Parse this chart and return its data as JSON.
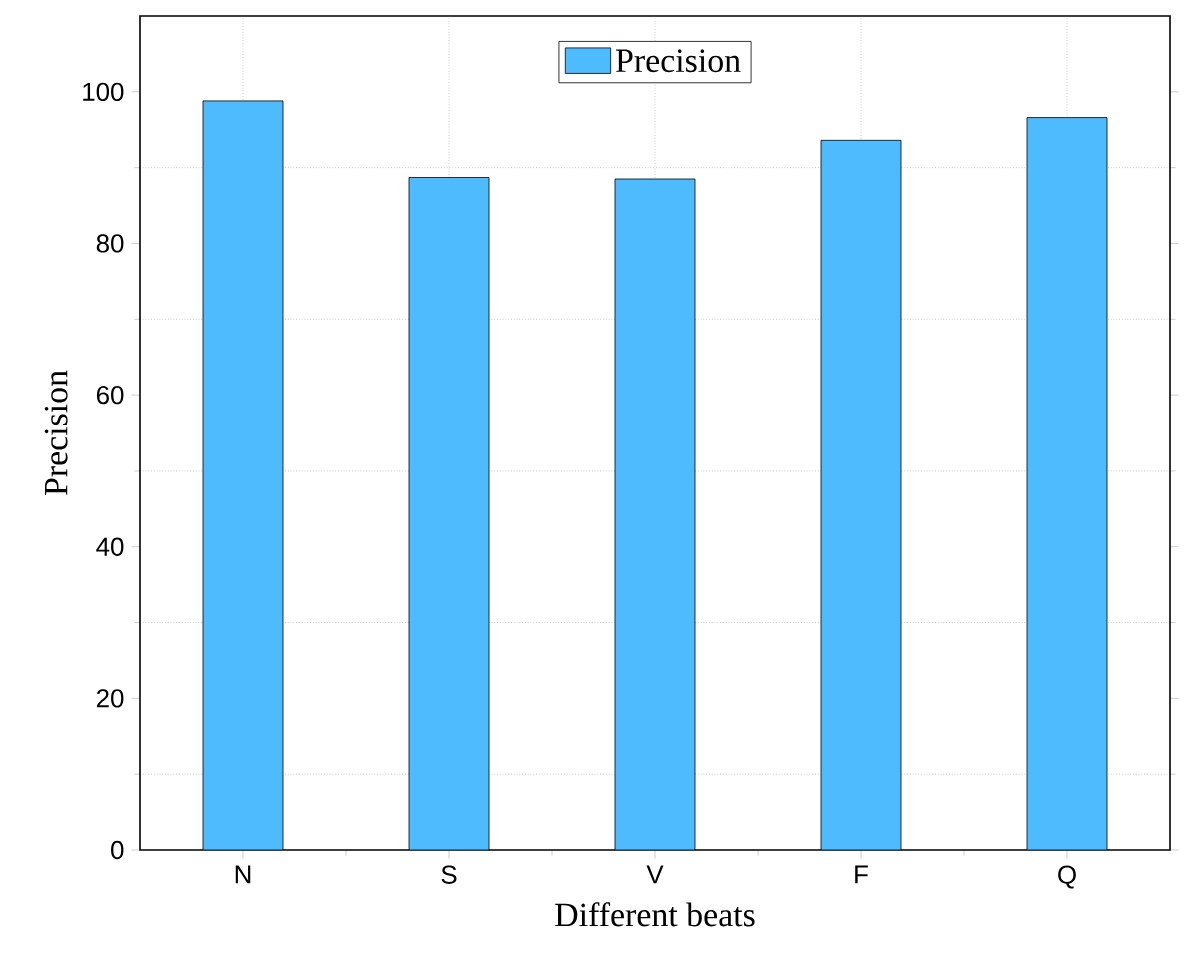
{
  "chart_data": {
    "type": "bar",
    "xlabel": "Different beats",
    "ylabel": "Precision",
    "categories": [
      "N",
      "S",
      "V",
      "F",
      "Q"
    ],
    "series": [
      {
        "name": "Precision",
        "color": "#4fbbff",
        "values": [
          98.8,
          88.7,
          88.5,
          93.6,
          96.6
        ]
      }
    ],
    "ylim": [
      0,
      110
    ],
    "yticks": [
      0,
      20,
      40,
      60,
      80,
      100
    ],
    "grid": true,
    "legend": "top"
  }
}
